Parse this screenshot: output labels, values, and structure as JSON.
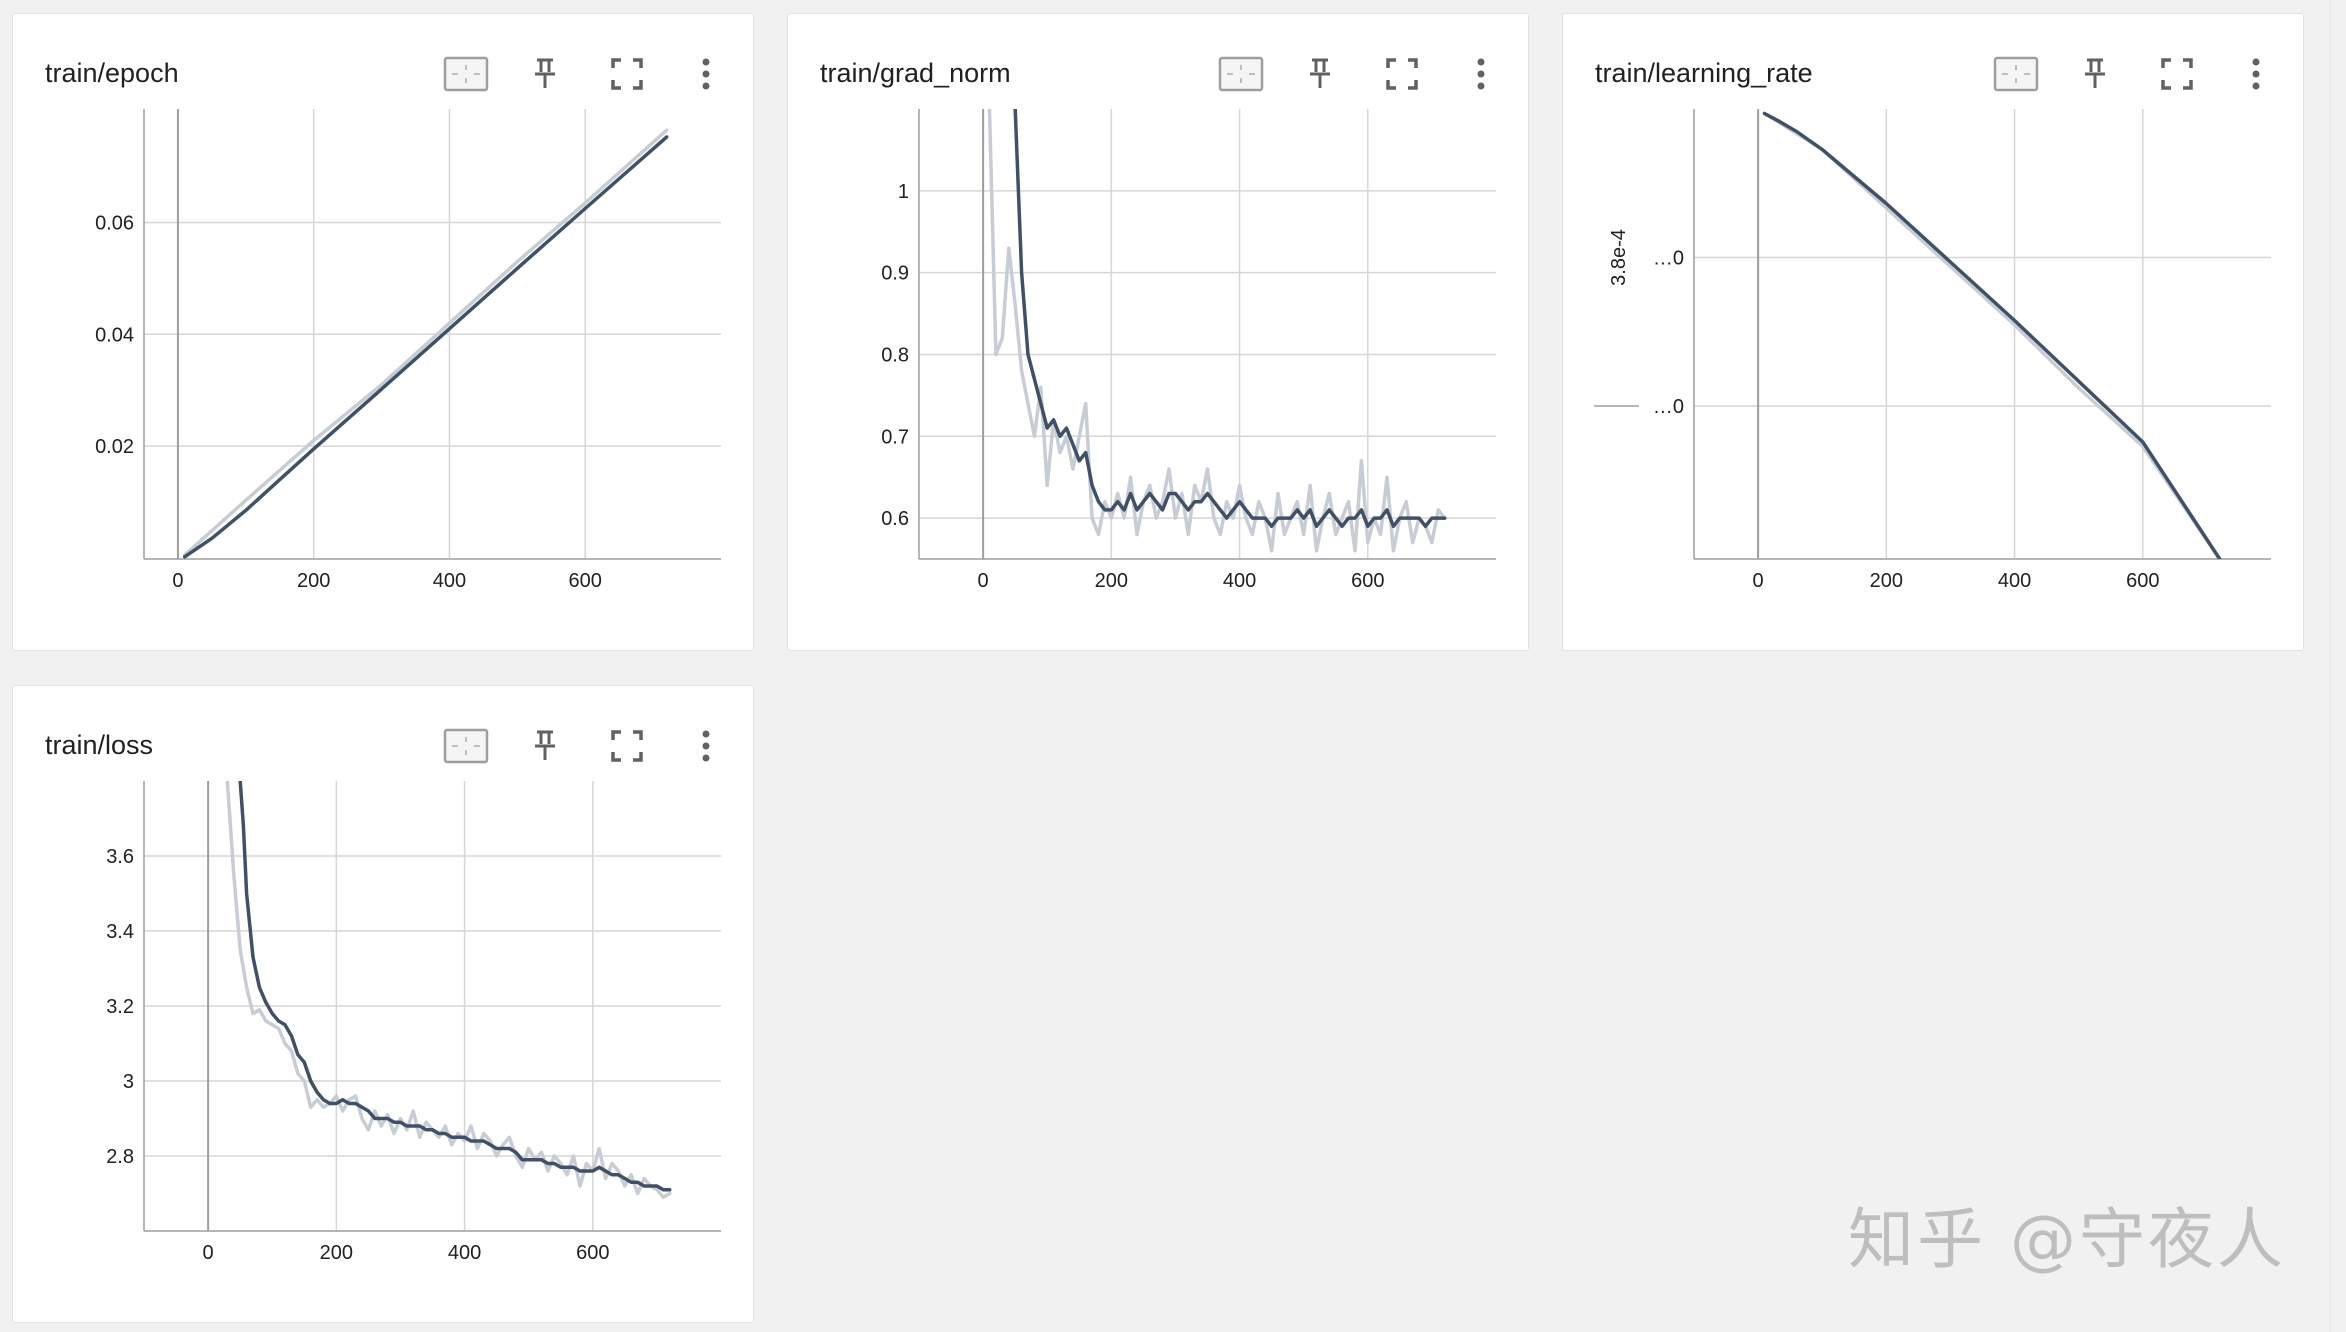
{
  "watermark": "知乎 @守夜人",
  "colors": {
    "smoothed": "#425066",
    "raw": "#c8ccd4",
    "grid": "#d6d6d6"
  },
  "icons": [
    "fit-domain-icon",
    "pin-icon",
    "fullscreen-icon",
    "more-vert-icon"
  ],
  "chart_data": [
    {
      "type": "line",
      "title": "train/epoch",
      "xlim": [
        -50,
        800
      ],
      "ylim": [
        -0.0002,
        0.0803
      ],
      "x_ticks": [
        0,
        200,
        400,
        600
      ],
      "x_tick_labels": [
        "0",
        "200",
        "400",
        "600"
      ],
      "y_ticks": [
        0.02,
        0.04,
        0.06
      ],
      "y_tick_labels": [
        "0.02",
        "0.04",
        "0.06"
      ],
      "series": [
        {
          "kind": "raw",
          "x": [
            10,
            100,
            200,
            300,
            400,
            500,
            600,
            720
          ],
          "y": [
            0.0005,
            0.0103,
            0.021,
            0.031,
            0.042,
            0.053,
            0.0635,
            0.0765
          ]
        },
        {
          "kind": "smoothed",
          "x": [
            10,
            50,
            100,
            150,
            200,
            300,
            400,
            500,
            600,
            720
          ],
          "y": [
            0.0002,
            0.0035,
            0.0085,
            0.014,
            0.0195,
            0.0302,
            0.041,
            0.0518,
            0.0625,
            0.0753
          ]
        }
      ],
      "grid": true
    },
    {
      "type": "line",
      "title": "train/grad_norm",
      "xlim": [
        -100,
        800
      ],
      "ylim": [
        0.55,
        1.1
      ],
      "x_ticks": [
        0,
        200,
        400,
        600
      ],
      "x_tick_labels": [
        "0",
        "200",
        "400",
        "600"
      ],
      "y_ticks": [
        0.6,
        0.7,
        0.8,
        0.9,
        1
      ],
      "y_tick_labels": [
        "0.6",
        "0.7",
        "0.8",
        "0.9",
        "1"
      ],
      "series": [
        {
          "kind": "raw",
          "x": [
            10,
            20,
            30,
            40,
            50,
            60,
            70,
            80,
            90,
            100,
            110,
            120,
            130,
            140,
            150,
            160,
            170,
            180,
            190,
            200,
            210,
            220,
            230,
            240,
            250,
            260,
            270,
            280,
            290,
            300,
            310,
            320,
            330,
            340,
            350,
            360,
            370,
            380,
            390,
            400,
            410,
            420,
            430,
            440,
            450,
            460,
            470,
            480,
            490,
            500,
            510,
            520,
            530,
            540,
            550,
            560,
            570,
            580,
            590,
            600,
            610,
            620,
            630,
            640,
            650,
            660,
            670,
            680,
            690,
            700,
            710,
            720
          ],
          "y": [
            1.1,
            0.8,
            0.82,
            0.93,
            0.86,
            0.78,
            0.74,
            0.7,
            0.76,
            0.64,
            0.72,
            0.68,
            0.7,
            0.66,
            0.7,
            0.74,
            0.6,
            0.58,
            0.62,
            0.6,
            0.63,
            0.6,
            0.65,
            0.58,
            0.62,
            0.64,
            0.6,
            0.62,
            0.66,
            0.6,
            0.63,
            0.58,
            0.64,
            0.62,
            0.66,
            0.6,
            0.58,
            0.62,
            0.6,
            0.64,
            0.6,
            0.58,
            0.62,
            0.6,
            0.56,
            0.63,
            0.58,
            0.6,
            0.62,
            0.58,
            0.64,
            0.56,
            0.6,
            0.63,
            0.58,
            0.6,
            0.62,
            0.56,
            0.67,
            0.57,
            0.6,
            0.58,
            0.65,
            0.56,
            0.6,
            0.62,
            0.57,
            0.6,
            0.59,
            0.57,
            0.61,
            0.6
          ]
        },
        {
          "kind": "smoothed",
          "x": [
            50,
            60,
            70,
            80,
            90,
            100,
            110,
            120,
            130,
            140,
            150,
            160,
            170,
            180,
            190,
            200,
            210,
            220,
            230,
            240,
            250,
            260,
            270,
            280,
            290,
            300,
            310,
            320,
            330,
            340,
            350,
            360,
            370,
            380,
            390,
            400,
            410,
            420,
            430,
            440,
            450,
            460,
            470,
            480,
            490,
            500,
            510,
            520,
            530,
            540,
            550,
            560,
            570,
            580,
            590,
            600,
            610,
            620,
            630,
            640,
            650,
            660,
            670,
            680,
            690,
            700,
            710,
            720
          ],
          "y": [
            1.1,
            0.9,
            0.8,
            0.77,
            0.74,
            0.71,
            0.72,
            0.7,
            0.71,
            0.69,
            0.67,
            0.68,
            0.64,
            0.62,
            0.61,
            0.61,
            0.62,
            0.61,
            0.63,
            0.61,
            0.62,
            0.63,
            0.62,
            0.61,
            0.63,
            0.63,
            0.62,
            0.61,
            0.62,
            0.62,
            0.63,
            0.62,
            0.61,
            0.6,
            0.61,
            0.62,
            0.61,
            0.6,
            0.6,
            0.6,
            0.59,
            0.6,
            0.6,
            0.6,
            0.61,
            0.6,
            0.61,
            0.59,
            0.6,
            0.61,
            0.6,
            0.59,
            0.6,
            0.6,
            0.61,
            0.59,
            0.6,
            0.6,
            0.61,
            0.59,
            0.6,
            0.6,
            0.6,
            0.6,
            0.59,
            0.6,
            0.6,
            0.6
          ]
        }
      ],
      "grid": true
    },
    {
      "type": "line",
      "title": "train/learning_rate",
      "xlim": [
        -100,
        800
      ],
      "ylim": [
        0,
        1
      ],
      "x_ticks": [
        0,
        200,
        400,
        600
      ],
      "x_tick_labels": [
        "0",
        "200",
        "400",
        "600"
      ],
      "y_tick_labels": [
        "…0",
        "…0"
      ],
      "y_axis_label": "3.8e-4",
      "series": [
        {
          "kind": "raw",
          "x": [
            10,
            100,
            200,
            300,
            400,
            500,
            600,
            720
          ],
          "y": [
            0.99,
            0.91,
            0.78,
            0.65,
            0.52,
            0.38,
            0.25,
            0.0
          ]
        },
        {
          "kind": "smoothed",
          "x": [
            10,
            30,
            60,
            100,
            200,
            300,
            400,
            500,
            600,
            720
          ],
          "y": [
            0.99,
            0.975,
            0.95,
            0.91,
            0.79,
            0.66,
            0.53,
            0.395,
            0.26,
            0.0
          ]
        }
      ],
      "grid": true
    },
    {
      "type": "line",
      "title": "train/loss",
      "xlim": [
        -100,
        800
      ],
      "ylim": [
        2.6,
        3.8
      ],
      "x_ticks": [
        0,
        200,
        400,
        600
      ],
      "x_tick_labels": [
        "0",
        "200",
        "400",
        "600"
      ],
      "y_ticks": [
        2.8,
        3,
        3.2,
        3.4,
        3.6
      ],
      "y_tick_labels": [
        "2.8",
        "3",
        "3.2",
        "3.4",
        "3.6"
      ],
      "series": [
        {
          "kind": "raw",
          "x": [
            30,
            40,
            50,
            60,
            70,
            80,
            90,
            100,
            110,
            120,
            130,
            140,
            150,
            160,
            170,
            180,
            190,
            200,
            210,
            220,
            230,
            240,
            250,
            260,
            270,
            280,
            290,
            300,
            310,
            320,
            330,
            340,
            350,
            360,
            370,
            380,
            390,
            400,
            410,
            420,
            430,
            440,
            450,
            460,
            470,
            480,
            490,
            500,
            510,
            520,
            530,
            540,
            550,
            560,
            570,
            580,
            590,
            600,
            610,
            620,
            630,
            640,
            650,
            660,
            670,
            680,
            690,
            700,
            710,
            720
          ],
          "y": [
            3.8,
            3.55,
            3.35,
            3.25,
            3.18,
            3.19,
            3.16,
            3.15,
            3.14,
            3.1,
            3.08,
            3.02,
            3.0,
            2.93,
            2.95,
            2.93,
            2.94,
            2.96,
            2.92,
            2.95,
            2.96,
            2.9,
            2.87,
            2.92,
            2.88,
            2.91,
            2.86,
            2.9,
            2.87,
            2.92,
            2.85,
            2.89,
            2.87,
            2.85,
            2.88,
            2.83,
            2.86,
            2.84,
            2.88,
            2.82,
            2.86,
            2.84,
            2.8,
            2.83,
            2.85,
            2.8,
            2.77,
            2.82,
            2.79,
            2.81,
            2.76,
            2.8,
            2.78,
            2.75,
            2.8,
            2.72,
            2.78,
            2.76,
            2.82,
            2.74,
            2.78,
            2.76,
            2.72,
            2.75,
            2.7,
            2.74,
            2.72,
            2.71,
            2.69,
            2.7
          ]
        },
        {
          "kind": "smoothed",
          "x": [
            50,
            55,
            60,
            70,
            80,
            90,
            100,
            110,
            120,
            130,
            140,
            150,
            160,
            170,
            180,
            190,
            200,
            210,
            220,
            230,
            240,
            250,
            260,
            270,
            280,
            290,
            300,
            310,
            320,
            330,
            340,
            350,
            360,
            370,
            380,
            390,
            400,
            410,
            420,
            430,
            440,
            450,
            460,
            470,
            480,
            490,
            500,
            510,
            520,
            530,
            540,
            550,
            560,
            570,
            580,
            590,
            600,
            610,
            620,
            630,
            640,
            650,
            660,
            670,
            680,
            690,
            700,
            710,
            720
          ],
          "y": [
            3.8,
            3.68,
            3.5,
            3.33,
            3.25,
            3.21,
            3.18,
            3.16,
            3.15,
            3.12,
            3.07,
            3.05,
            3.0,
            2.97,
            2.95,
            2.94,
            2.94,
            2.95,
            2.94,
            2.94,
            2.93,
            2.92,
            2.9,
            2.9,
            2.9,
            2.89,
            2.89,
            2.88,
            2.88,
            2.88,
            2.87,
            2.87,
            2.86,
            2.86,
            2.85,
            2.85,
            2.85,
            2.84,
            2.84,
            2.84,
            2.83,
            2.82,
            2.82,
            2.82,
            2.81,
            2.79,
            2.79,
            2.79,
            2.79,
            2.78,
            2.78,
            2.77,
            2.77,
            2.77,
            2.76,
            2.76,
            2.76,
            2.77,
            2.76,
            2.75,
            2.75,
            2.74,
            2.73,
            2.73,
            2.72,
            2.72,
            2.72,
            2.71,
            2.71
          ]
        }
      ],
      "grid": true
    }
  ]
}
